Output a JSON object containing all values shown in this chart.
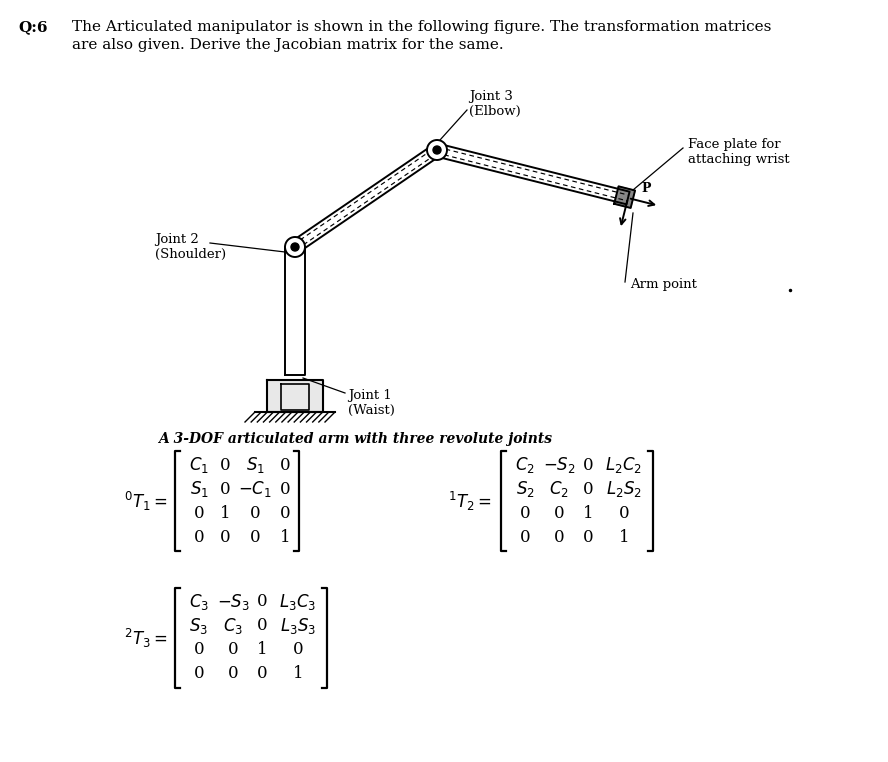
{
  "bg": "#ffffff",
  "header_bold": "Q:6",
  "header_line1": "The Articulated manipulator is shown in the following figure. The transformation matrices",
  "header_line2": "are also given. Derive the Jacobian matrix for the same.",
  "caption": "A 3-DOF articulated arm with three revolute joints",
  "joint1_label": [
    "Joint 1",
    "(Waist)"
  ],
  "joint2_label": [
    "Joint 2",
    "(Shoulder)"
  ],
  "joint3_label": [
    "Joint 3",
    "(Elbow)"
  ],
  "faceplate_label": [
    "Face plate for",
    "attaching wrist"
  ],
  "armpoint_label": "Arm point",
  "point_P_label": "P",
  "matrix_T1_label": "$^{0}T_1 =$",
  "matrix_T2_label": "$^{1}T_2 =$",
  "matrix_T3_label": "$^{2}T_3 =$",
  "matrix_T1": [
    [
      "$C_1$",
      "0",
      "$S_1$",
      "0"
    ],
    [
      "$S_1$",
      "0",
      "$-C_1$",
      "0"
    ],
    [
      "0",
      "1",
      "0",
      "0"
    ],
    [
      "0",
      "0",
      "0",
      "1"
    ]
  ],
  "matrix_T2": [
    [
      "$C_2$",
      "$-S_2$",
      "0",
      "$L_2C_2$"
    ],
    [
      "$S_2$",
      "$C_2$",
      "0",
      "$L_2S_2$"
    ],
    [
      "0",
      "0",
      "1",
      "0"
    ],
    [
      "0",
      "0",
      "0",
      "1"
    ]
  ],
  "matrix_T3": [
    [
      "$C_3$",
      "$-S_3$",
      "0",
      "$L_3C_3$"
    ],
    [
      "$S_3$",
      "$C_3$",
      "0",
      "$L_3S_3$"
    ],
    [
      "0",
      "0",
      "1",
      "0"
    ],
    [
      "0",
      "0",
      "0",
      "1"
    ]
  ]
}
